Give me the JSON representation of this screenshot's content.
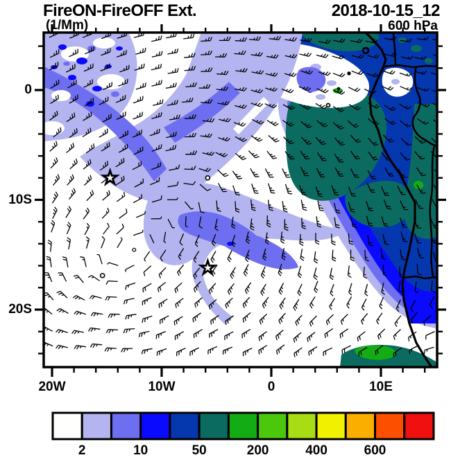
{
  "header": {
    "title": "FireON-FireOFF Ext.",
    "units": "(1/Mm)",
    "datetime": "2018-10-15_12",
    "level": "600 hPa"
  },
  "axes": {
    "x": {
      "major": [
        {
          "label": "20W",
          "lon": -20
        },
        {
          "label": "10W",
          "lon": -10
        },
        {
          "label": "0",
          "lon": 0
        },
        {
          "label": "10E",
          "lon": 10
        }
      ],
      "minor_step_deg": 2,
      "minor_range": [
        -20,
        14
      ]
    },
    "y": {
      "major": [
        {
          "label": "0",
          "lat": 0
        },
        {
          "label": "10S",
          "lat": -10
        },
        {
          "label": "20S",
          "lat": -20
        }
      ],
      "minor_step_deg": 2,
      "minor_range": [
        -24,
        4
      ]
    },
    "extent": {
      "lon_min": -20.8,
      "lon_max": 15.1,
      "lat_min": -25.2,
      "lat_max": 5.2
    }
  },
  "palette": {
    "white": "#FFFFFF",
    "lavender": "#B4B4F0",
    "periwinkle": "#6E6EF0",
    "blue": "#0A0AFF",
    "navy": "#0537AF",
    "teal": "#0B6B60",
    "green": "#14AC14",
    "bright_green": "#4CC80C",
    "yellow_green": "#A8DC14",
    "yellow": "#F0F000",
    "orange": "#FCAE00",
    "orange_red": "#FC5000",
    "red": "#F01010",
    "ink": "#000000"
  },
  "colorbar": {
    "levels": [
      2,
      5,
      10,
      20,
      50,
      100,
      200,
      300,
      400,
      500,
      600
    ],
    "labeled_levels": [
      2,
      10,
      50,
      200,
      400,
      600
    ],
    "colors": [
      "#FFFFFE",
      "#B4B4F0",
      "#6E6EF0",
      "#0A0AFF",
      "#0537AF",
      "#0B6B60",
      "#14AC14",
      "#4CC80C",
      "#A8DC14",
      "#F0F000",
      "#FCAE00",
      "#FC5000",
      "#F01010"
    ]
  },
  "markers": {
    "stars": [
      {
        "lon": -14.7,
        "lat": -8.0
      },
      {
        "lon": -5.8,
        "lat": -16.2
      }
    ],
    "calm_circles": [
      {
        "lon": -15.4,
        "lat": -16.9
      },
      {
        "lon": -5.8,
        "lat": -8.0
      }
    ]
  },
  "chart_data": {
    "type": "heatmap",
    "subtype": "filled-contour latitude/longitude map with wind barbs",
    "variable": "FireON minus FireOFF aerosol extinction difference",
    "units": "1/Mm",
    "valid_time": "2018-10-15_12",
    "pressure_level": "600 hPa",
    "lon_range": [
      -20.8,
      15.1
    ],
    "lat_range": [
      -25.2,
      5.2
    ],
    "contour_levels": [
      2,
      5,
      10,
      20,
      50,
      100,
      200,
      300,
      400,
      500,
      600
    ],
    "legend_position": "bottom horizontal colorbar",
    "regions": [
      {
        "name": "Gulf of Guinea and Congo-basin mass (north-east quadrant)",
        "approx_value_1perMm": "20-100",
        "fill": "blue/navy with teal patches"
      },
      {
        "name": "white pocket over Gulf of Guinea coast near 5E,2N",
        "approx_value_1perMm": "<2",
        "fill": "white with lavender speckles"
      },
      {
        "name": "offshore Congo/Gabon plume core near 5E,5S",
        "approx_value_1perMm": "50-100",
        "fill": "teal"
      },
      {
        "name": "Angola coastal plume extending south-west to ~24S",
        "approx_value_1perMm": "10-100",
        "fill": "blue/navy with lavender rim"
      },
      {
        "name": "diagonal mid-Atlantic band from ~3W,5N to ~17W,8S",
        "approx_value_1perMm": "2-10",
        "fill": "lavender/periwinkle"
      },
      {
        "name": "central blob near 8W,13S with darker core",
        "approx_value_1perMm": "2-10",
        "fill": "lavender with periwinkle core"
      },
      {
        "name": "south-west quadrant (south of ~18S, west of ~10W)",
        "approx_value_1perMm": "<2",
        "fill": "white"
      },
      {
        "name": "bottom-right band near 25S by the Namibian coast",
        "approx_value_1perMm": "50-300",
        "fill": "teal with green patch"
      }
    ],
    "wind": {
      "depiction": "wind barbs on ~2-degree grid",
      "pattern": "anticyclonic circulation over the South Atlantic with two calm centers; easterlies north of the equator; south-easterlies along the Angolan coast; wavy westerlies south of ~20S",
      "calm_centers_lonlat": [
        [
          -15.4,
          -16.9
        ],
        [
          -5.8,
          -8.0
        ]
      ]
    },
    "map_features": [
      "West African coastline from the Bight of Biafra to Namibia",
      "country borders (Nigeria/Cameroon, Congo, Angola, Namibia)",
      "islands: Bioko, Principe, Sao Tome, Annobon"
    ]
  }
}
